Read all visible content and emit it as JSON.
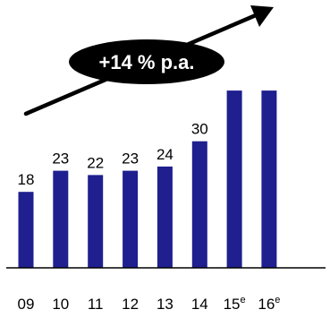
{
  "chart_data": {
    "type": "bar",
    "categories": [
      "09",
      "10",
      "11",
      "12",
      "13",
      "14",
      "15",
      "16"
    ],
    "category_superscripts": [
      "",
      "",
      "",
      "",
      "",
      "",
      "e",
      "e"
    ],
    "values": [
      18,
      23,
      22,
      23,
      24,
      30,
      42,
      42
    ],
    "data_labels": [
      "18",
      "23",
      "22",
      "23",
      "24",
      "30",
      "",
      ""
    ],
    "title": "",
    "xlabel": "",
    "ylabel": "",
    "ylim": [
      0,
      45
    ],
    "grid": false,
    "bar_color": "#1f1f8f",
    "axis_color": "#000000",
    "annotation": {
      "text": "+14 % p.a.",
      "bubble_color": "#000000",
      "text_color": "#ffffff",
      "arrow_color": "#000000"
    }
  }
}
